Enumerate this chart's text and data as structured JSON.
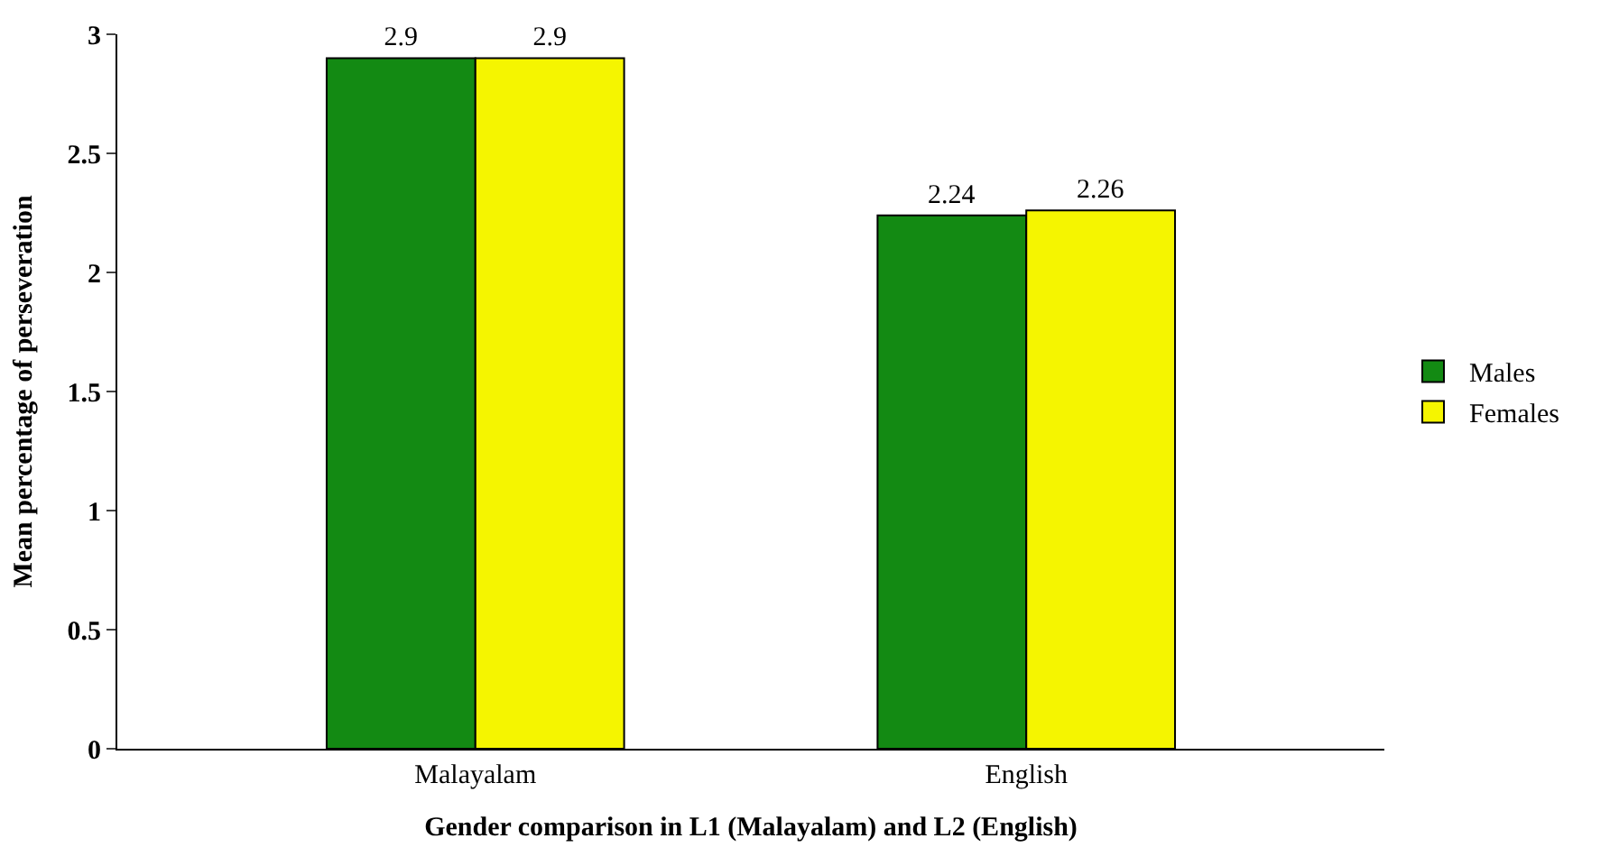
{
  "chart_data": {
    "type": "bar",
    "xlabel": "Gender comparison in L1 (Malayalam) and L2 (English)",
    "ylabel": "Mean percentage of perseveration",
    "categories": [
      "Malayalam",
      "English"
    ],
    "series": [
      {
        "name": "Males",
        "color": "#138a13",
        "values": [
          2.9,
          2.24
        ]
      },
      {
        "name": "Females",
        "color": "#f5f500",
        "values": [
          2.9,
          2.26
        ]
      }
    ],
    "ylim": [
      0,
      3
    ],
    "yticks": [
      0,
      {
        "value": 0.5,
        "label": "0.5"
      },
      1,
      {
        "value": 1.5,
        "label": "1.5"
      },
      2,
      {
        "value": 2.5,
        "label": "2.5"
      },
      3
    ],
    "legend": "right",
    "data_labels": true
  }
}
